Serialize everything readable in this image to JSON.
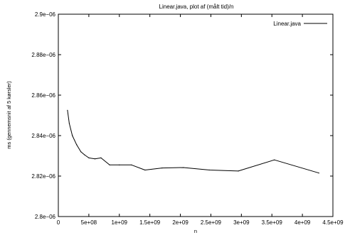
{
  "chart_data": {
    "type": "line",
    "title": "Linear.java, plot af (målt tid)/n",
    "xlabel": "n",
    "ylabel": "ms (gennemsnit af 5 kørsler)",
    "xlim": [
      0,
      4500000000
    ],
    "ylim": [
      2.8e-06,
      2.9e-06
    ],
    "x_ticks": [
      {
        "value": 0,
        "label": "0"
      },
      {
        "value": 500000000,
        "label": "5e+08"
      },
      {
        "value": 1000000000,
        "label": "1e+09"
      },
      {
        "value": 1500000000,
        "label": "1.5e+09"
      },
      {
        "value": 2000000000,
        "label": "2e+09"
      },
      {
        "value": 2500000000,
        "label": "2.5e+09"
      },
      {
        "value": 3000000000,
        "label": "3e+09"
      },
      {
        "value": 3500000000,
        "label": "3.5e+09"
      },
      {
        "value": 4000000000,
        "label": "4e+09"
      },
      {
        "value": 4500000000,
        "label": "4.5e+09"
      }
    ],
    "y_ticks": [
      {
        "value": 2.8e-06,
        "label": "2.8e−06"
      },
      {
        "value": 2.82e-06,
        "label": "2.82e−06"
      },
      {
        "value": 2.84e-06,
        "label": "2.84e−06"
      },
      {
        "value": 2.86e-06,
        "label": "2.86e−06"
      },
      {
        "value": 2.88e-06,
        "label": "2.88e−06"
      },
      {
        "value": 2.9e-06,
        "label": "2.9e−06"
      }
    ],
    "grid": false,
    "legend_position": "top-right",
    "series": [
      {
        "name": "Linear.java",
        "color": "#000000",
        "x": [
          150000000,
          180000000,
          230000000,
          300000000,
          370000000,
          430000000,
          500000000,
          600000000,
          700000000,
          840000000,
          1000000000,
          1200000000,
          1420000000,
          1700000000,
          2050000000,
          2480000000,
          2950000000,
          3540000000,
          4270000000
        ],
        "y": [
          2.8525e-06,
          2.846e-06,
          2.84e-06,
          2.8355e-06,
          2.832e-06,
          2.8305e-06,
          2.829e-06,
          2.8285e-06,
          2.829e-06,
          2.8255e-06,
          2.8255e-06,
          2.8255e-06,
          2.823e-06,
          2.824e-06,
          2.8242e-06,
          2.823e-06,
          2.8225e-06,
          2.828e-06,
          2.8215e-06
        ]
      }
    ]
  }
}
